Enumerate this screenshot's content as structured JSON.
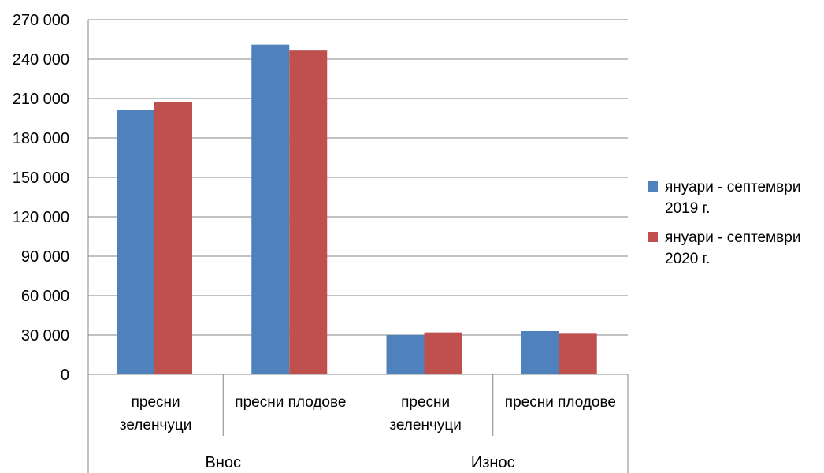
{
  "chart_data": {
    "type": "bar",
    "title": "",
    "xlabel": "",
    "ylabel": "",
    "ylim": [
      0,
      270000
    ],
    "yticks": [
      0,
      30000,
      60000,
      90000,
      120000,
      150000,
      180000,
      210000,
      240000,
      270000
    ],
    "ytick_labels": [
      "0",
      "30 000",
      "60 000",
      "90 000",
      "120 000",
      "150 000",
      "180 000",
      "210 000",
      "240 000",
      "270 000"
    ],
    "grid": true,
    "legend_position": "right",
    "groups": [
      {
        "label": "Внос",
        "categories": [
          0,
          1
        ]
      },
      {
        "label": "Износ",
        "categories": [
          2,
          3
        ]
      }
    ],
    "categories": [
      {
        "lines": [
          "пресни",
          "зеленчуци"
        ]
      },
      {
        "lines": [
          "пресни плодове"
        ]
      },
      {
        "lines": [
          "пресни",
          "зеленчуци"
        ]
      },
      {
        "lines": [
          "пресни плодове"
        ]
      }
    ],
    "series": [
      {
        "name_lines": [
          "януари - септември",
          "2019 г."
        ],
        "color": "#4f81bd",
        "values": [
          201500,
          251000,
          30000,
          33000
        ]
      },
      {
        "name_lines": [
          "януари - септември",
          "2020 г."
        ],
        "color": "#c0504d",
        "values": [
          207500,
          246500,
          32000,
          31000
        ]
      }
    ]
  }
}
